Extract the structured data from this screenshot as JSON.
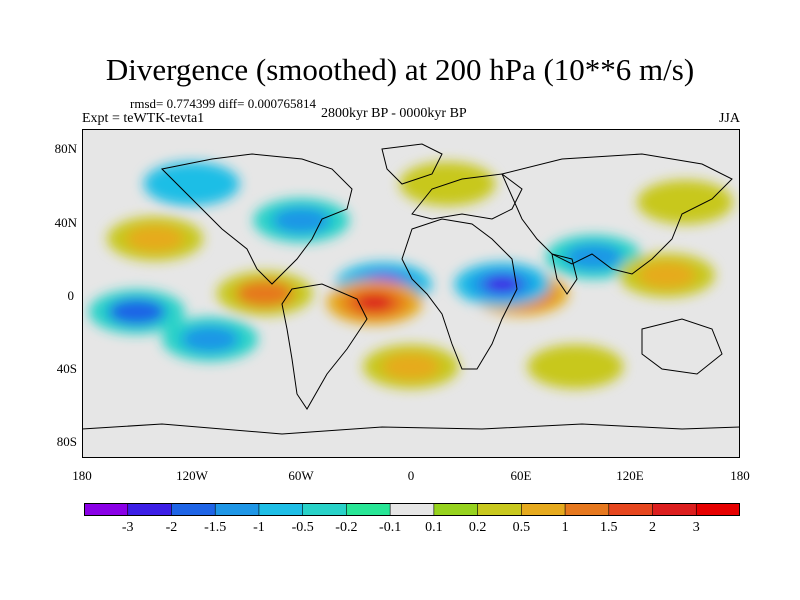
{
  "title": "Divergence (smoothed) at 200 hPa (10**6 m/s)",
  "stats": "rmsd= 0.774399 diff= 0.000765814",
  "expt": "Expt = teWTK-tevta1",
  "period": "2800kyr BP - 0000kyr BP",
  "season": "JJA",
  "axes": {
    "y_ticks": [
      "80N",
      "40N",
      "0",
      "40S",
      "80S"
    ],
    "x_ticks": [
      "180",
      "120W",
      "60W",
      "0",
      "60E",
      "120E",
      "180"
    ]
  },
  "colorbar": {
    "labels": [
      "-3",
      "-2",
      "-1.5",
      "-1",
      "-0.5",
      "-0.2",
      "-0.1",
      "0.1",
      "0.2",
      "0.5",
      "1",
      "1.5",
      "2",
      "3"
    ],
    "colors": [
      "#8a00e6",
      "#3c1ee6",
      "#1e64e6",
      "#1e96e6",
      "#1ebee6",
      "#28d2c8",
      "#28e696",
      "#e6e6e6",
      "#96d21e",
      "#c8c81e",
      "#e6aa1e",
      "#e6781e",
      "#e6461e",
      "#dc1e1e",
      "#e60000"
    ]
  },
  "colors": {
    "land_outline": "#000000",
    "background": "#e6e6e6"
  },
  "chart_data": {
    "type": "heatmap",
    "title": "Divergence (smoothed) at 200 hPa (10**6 m/s)",
    "x_range": [
      -180,
      180
    ],
    "y_range": [
      -90,
      90
    ],
    "blobs": [
      {
        "lon": -15,
        "lat": 5,
        "value": -3
      },
      {
        "lon": -20,
        "lat": -5,
        "value": 2.5
      },
      {
        "lon": 60,
        "lat": 0,
        "value": 3
      },
      {
        "lon": 50,
        "lat": 5,
        "value": -2
      },
      {
        "lon": -150,
        "lat": -10,
        "value": -1.5
      },
      {
        "lon": -80,
        "lat": 0,
        "value": 1.5
      },
      {
        "lon": -110,
        "lat": -25,
        "value": -1
      },
      {
        "lon": 100,
        "lat": 20,
        "value": -1
      },
      {
        "lon": 140,
        "lat": 10,
        "value": 1
      },
      {
        "lon": -140,
        "lat": 30,
        "value": 1
      },
      {
        "lon": -60,
        "lat": 40,
        "value": -1
      },
      {
        "lon": 20,
        "lat": 60,
        "value": 0.5
      },
      {
        "lon": 0,
        "lat": -40,
        "value": 1
      },
      {
        "lon": 90,
        "lat": -40,
        "value": 0.5
      },
      {
        "lon": -120,
        "lat": 60,
        "value": -0.5
      },
      {
        "lon": 150,
        "lat": 50,
        "value": 0.5
      }
    ]
  }
}
